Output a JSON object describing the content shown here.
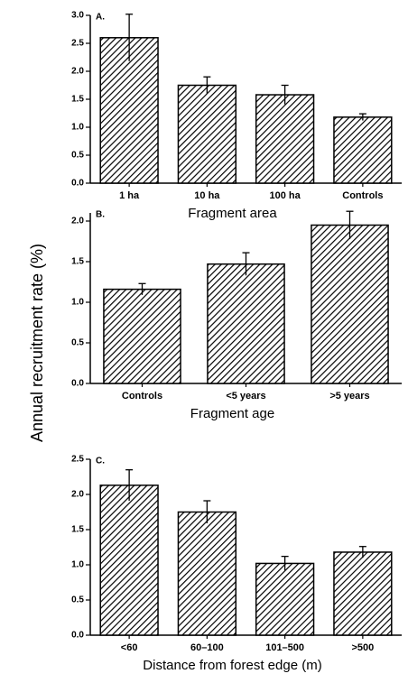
{
  "ylabel": "Annual recruitment rate (%)",
  "chart_data": [
    {
      "type": "bar",
      "panel": "A.",
      "xlabel": "Fragment area",
      "color": "#000000",
      "categories": [
        "1 ha",
        "10 ha",
        "100 ha",
        "Controls"
      ],
      "values": [
        2.6,
        1.75,
        1.58,
        1.18
      ],
      "errors": [
        0.42,
        0.15,
        0.17,
        0.06
      ],
      "ylim": [
        0,
        3
      ],
      "yticks": [
        {
          "value": 0,
          "label": "0.0"
        },
        0.5,
        {
          "value": 1,
          "label": "1.0"
        },
        1.5,
        {
          "value": 2,
          "label": "2.0"
        },
        2.5,
        {
          "value": 3,
          "label": "3.0"
        }
      ]
    },
    {
      "type": "bar",
      "panel": "B.",
      "xlabel": "Fragment age",
      "color": "#000000",
      "categories": [
        "Controls",
        "<5 years",
        ">5 years"
      ],
      "values": [
        1.16,
        1.47,
        1.95
      ],
      "errors": [
        0.07,
        0.14,
        0.17
      ],
      "ylim": [
        0,
        2.1
      ],
      "yticks": [
        {
          "value": 0,
          "label": "0.0"
        },
        0.5,
        {
          "value": 1,
          "label": "1.0"
        },
        1.5,
        {
          "value": 2,
          "label": "2.0"
        }
      ]
    },
    {
      "type": "bar",
      "panel": "C.",
      "xlabel": "Distance from forest edge (m)",
      "color": "#000000",
      "categories": [
        "<60",
        "60–100",
        "101–500",
        ">500"
      ],
      "values": [
        2.13,
        1.75,
        1.02,
        1.18
      ],
      "errors": [
        0.22,
        0.16,
        0.1,
        0.08
      ],
      "ylim": [
        0,
        2.5
      ],
      "yticks": [
        {
          "value": 0,
          "label": "0.0"
        },
        0.5,
        {
          "value": 1,
          "label": "1.0"
        },
        1.5,
        {
          "value": 2,
          "label": "2.0"
        },
        2.5
      ]
    }
  ]
}
